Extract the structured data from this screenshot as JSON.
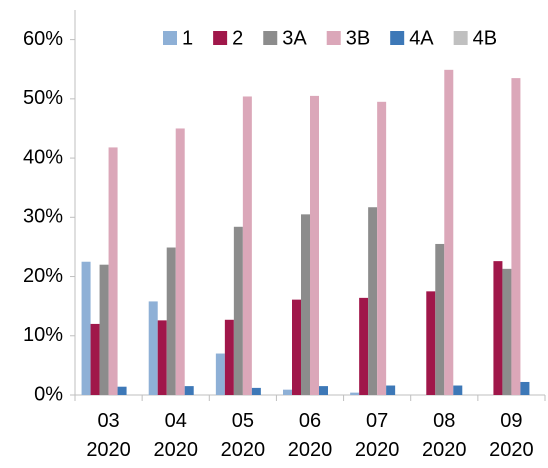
{
  "chart_data": {
    "type": "bar",
    "categories": [
      "03\n2020",
      "04\n2020",
      "05\n2020",
      "06\n2020",
      "07\n2020",
      "08\n2020",
      "09\n2020"
    ],
    "series": [
      {
        "name": "1",
        "color": "#8eb0d6",
        "values": [
          22.5,
          15.8,
          7.0,
          0.9,
          0.4,
          0,
          0
        ]
      },
      {
        "name": "2",
        "color": "#a0174a",
        "values": [
          12.0,
          12.6,
          12.7,
          16.1,
          16.4,
          17.5,
          22.6
        ]
      },
      {
        "name": "3A",
        "color": "#8c8c8c",
        "values": [
          22.0,
          24.9,
          28.4,
          30.5,
          31.7,
          25.5,
          21.3
        ]
      },
      {
        "name": "3B",
        "color": "#dba7b9",
        "values": [
          41.8,
          45.0,
          50.4,
          50.5,
          49.5,
          54.9,
          53.5
        ]
      },
      {
        "name": "4A",
        "color": "#3d78b7",
        "values": [
          1.4,
          1.5,
          1.2,
          1.5,
          1.6,
          1.6,
          2.2
        ]
      },
      {
        "name": "4B",
        "color": "#c0c0c0",
        "values": [
          0,
          0,
          0,
          0,
          0,
          0,
          0
        ]
      }
    ],
    "ylim": [
      0,
      65
    ],
    "yticks": [
      {
        "value": 0,
        "label": "0%"
      },
      {
        "value": 10,
        "label": "10%"
      },
      {
        "value": 20,
        "label": "20%"
      },
      {
        "value": 30,
        "label": "30%"
      },
      {
        "value": 40,
        "label": "40%"
      },
      {
        "value": 50,
        "label": "50%"
      },
      {
        "value": 60,
        "label": "60%"
      }
    ],
    "grid": false,
    "legend": "top"
  }
}
